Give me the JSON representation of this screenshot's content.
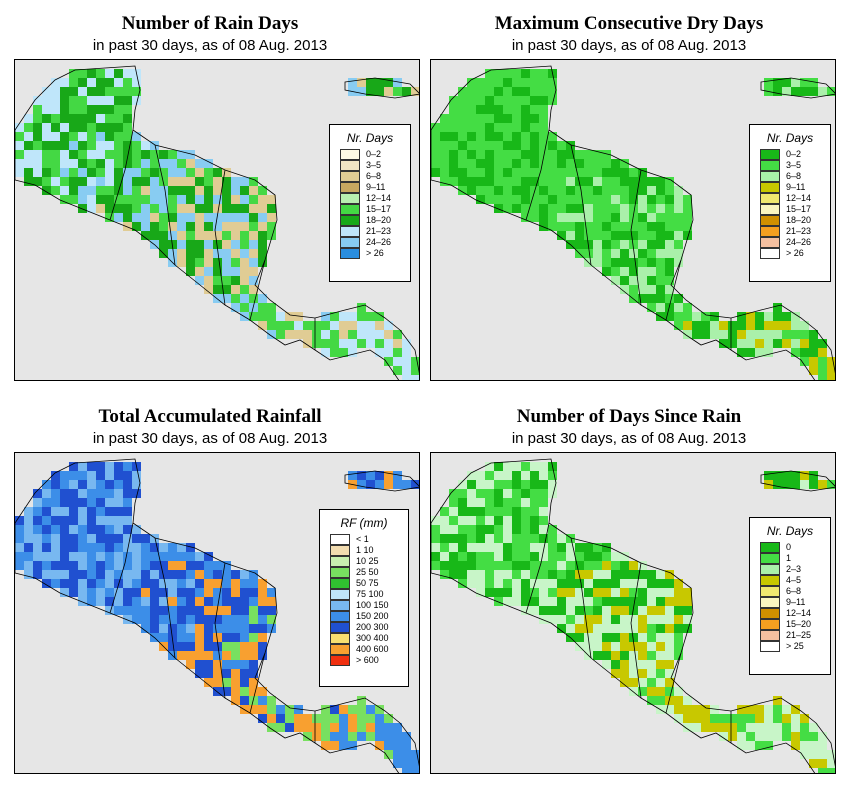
{
  "panels": [
    {
      "id": "rain-days",
      "title": "Number of Rain Days",
      "subtitle": "in past 30 days, as of  08 Aug. 2013",
      "legend_title": "Nr. Days",
      "legend": [
        {
          "label": "0–2",
          "color": "#fffbe6"
        },
        {
          "label": "3–5",
          "color": "#f2e6c4"
        },
        {
          "label": "6–8",
          "color": "#e0cc94"
        },
        {
          "label": "9–11",
          "color": "#c8a860"
        },
        {
          "label": "12–14",
          "color": "#b8f0b0"
        },
        {
          "label": "15–17",
          "color": "#44d844"
        },
        {
          "label": "18–20",
          "color": "#18a818"
        },
        {
          "label": "21–23",
          "color": "#bfe6fa"
        },
        {
          "label": "24–26",
          "color": "#88ccf2"
        },
        {
          "label": "> 26",
          "color": "#2a8ee0"
        }
      ],
      "palette": [
        "#bfe6fa",
        "#bfe6fa",
        "#44d844",
        "#18a818",
        "#88ccf2",
        "#e0cc94",
        "#44d844",
        "#bfe6fa"
      ]
    },
    {
      "id": "dry-days",
      "title": "Maximum Consecutive Dry Days",
      "subtitle": "in past 30 days, as of  08 Aug. 2013",
      "legend_title": "Nr. Days",
      "legend": [
        {
          "label": "0–2",
          "color": "#18b818"
        },
        {
          "label": "3–5",
          "color": "#44dd44"
        },
        {
          "label": "6–8",
          "color": "#aaf0aa"
        },
        {
          "label": "9–11",
          "color": "#c8c800"
        },
        {
          "label": "12–14",
          "color": "#f0e870"
        },
        {
          "label": "15–17",
          "color": "#fbf6c0"
        },
        {
          "label": "18–20",
          "color": "#d09000"
        },
        {
          "label": "21–23",
          "color": "#f5a020"
        },
        {
          "label": "24–26",
          "color": "#f5c0a0"
        },
        {
          "label": "> 26",
          "color": "#ffffff"
        }
      ],
      "palette": [
        "#44dd44",
        "#44dd44",
        "#44dd44",
        "#18b818",
        "#44dd44",
        "#aaf0aa",
        "#18b818",
        "#c8c800"
      ]
    },
    {
      "id": "rainfall",
      "title": "Total Accumulated Rainfall",
      "subtitle": "in past 30 days, as of  08 Aug. 2013",
      "legend_title": "RF (mm)",
      "legend": [
        {
          "label": "< 1",
          "color": "#ffffff"
        },
        {
          "label": "1   10",
          "color": "#f2dcb0"
        },
        {
          "label": "10   25",
          "color": "#c8f0b0"
        },
        {
          "label": "25   50",
          "color": "#78e060"
        },
        {
          "label": "50   75",
          "color": "#30c030"
        },
        {
          "label": "75   100",
          "color": "#bfe6fa"
        },
        {
          "label": "100   150",
          "color": "#78b8f0"
        },
        {
          "label": "150   200",
          "color": "#3c8ee8"
        },
        {
          "label": "200   300",
          "color": "#2050d0"
        },
        {
          "label": "300   400",
          "color": "#f8e070"
        },
        {
          "label": "400   600",
          "color": "#f8a030"
        },
        {
          "label": "> 600",
          "color": "#f03010"
        }
      ],
      "palette": [
        "#3c8ee8",
        "#2050d0",
        "#78b8f0",
        "#3c8ee8",
        "#2050d0",
        "#f8a030",
        "#78e060",
        "#3c8ee8"
      ]
    },
    {
      "id": "days-since-rain",
      "title": "Number of Days Since Rain",
      "subtitle": "in past 30 days, as of  08 Aug. 2013",
      "legend_title": "Nr. Days",
      "legend": [
        {
          "label": "0",
          "color": "#18b818"
        },
        {
          "label": "1",
          "color": "#44dd44"
        },
        {
          "label": "2–3",
          "color": "#aaf0aa"
        },
        {
          "label": "4–5",
          "color": "#c8c800"
        },
        {
          "label": "6–8",
          "color": "#f0e870"
        },
        {
          "label": "9–11",
          "color": "#fbf6c0"
        },
        {
          "label": "12–14",
          "color": "#d09000"
        },
        {
          "label": "15–20",
          "color": "#f5a020"
        },
        {
          "label": "21–25",
          "color": "#f5c0a0"
        },
        {
          "label": "> 25",
          "color": "#ffffff"
        }
      ],
      "palette": [
        "#c8f5c8",
        "#c8f5c8",
        "#44dd44",
        "#18b818",
        "#c8f5c8",
        "#c8c800",
        "#44dd44",
        "#c8f5c8"
      ]
    }
  ],
  "colors": {
    "ocean": "#e6e6e6",
    "border": "#000000"
  }
}
